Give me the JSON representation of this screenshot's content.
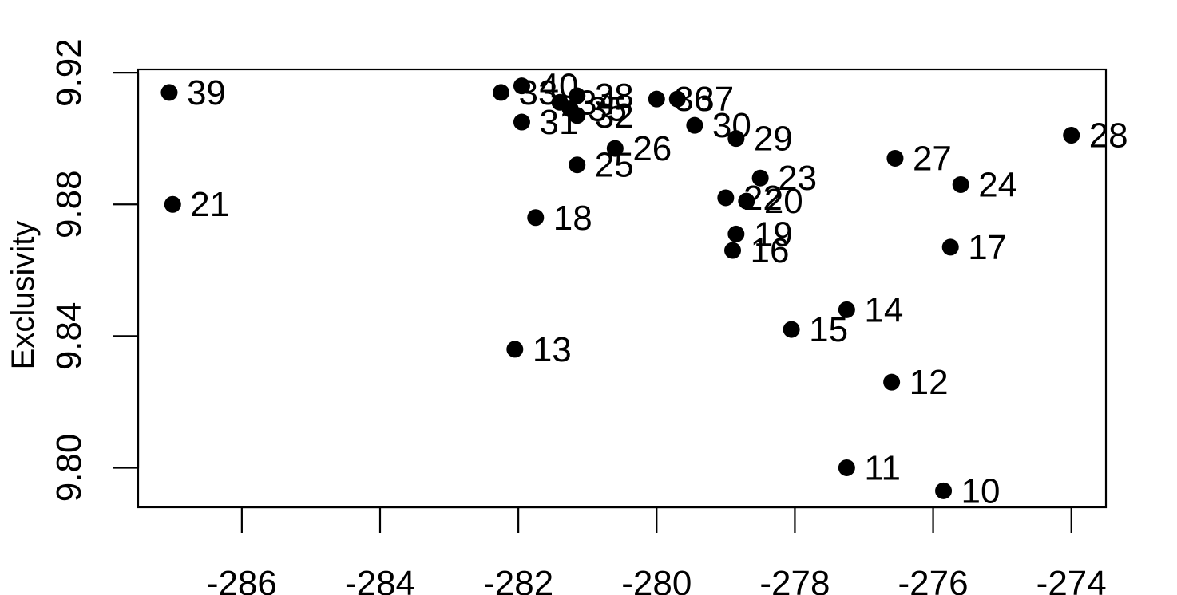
{
  "chart_data": {
    "type": "scatter",
    "title": "",
    "xlabel": "",
    "ylabel": "Exclusivity",
    "xlim": [
      -287.5,
      -273.5
    ],
    "ylim": [
      9.788,
      9.921
    ],
    "grid": false,
    "legend": "none",
    "x_ticks": [
      -286,
      -284,
      -282,
      -280,
      -278,
      -276,
      -274
    ],
    "x_tick_labels": [
      "-286",
      "-284",
      "-282",
      "-280",
      "-278",
      "-276",
      "-274"
    ],
    "y_ticks": [
      9.8,
      9.84,
      9.88,
      9.92
    ],
    "y_tick_labels": [
      "9.80",
      "9.84",
      "9.88",
      "9.92"
    ],
    "point_color": "#000000",
    "points": [
      {
        "label": "10",
        "x": -275.85,
        "y": 9.793
      },
      {
        "label": "11",
        "x": -277.25,
        "y": 9.8
      },
      {
        "label": "12",
        "x": -276.6,
        "y": 9.826
      },
      {
        "label": "13",
        "x": -282.05,
        "y": 9.836
      },
      {
        "label": "14",
        "x": -277.25,
        "y": 9.848
      },
      {
        "label": "15",
        "x": -278.05,
        "y": 9.842
      },
      {
        "label": "16",
        "x": -278.9,
        "y": 9.866
      },
      {
        "label": "17",
        "x": -275.75,
        "y": 9.867
      },
      {
        "label": "18",
        "x": -281.75,
        "y": 9.876
      },
      {
        "label": "19",
        "x": -278.85,
        "y": 9.871
      },
      {
        "label": "20",
        "x": -278.7,
        "y": 9.881
      },
      {
        "label": "21",
        "x": -287.0,
        "y": 9.88
      },
      {
        "label": "22",
        "x": -279.0,
        "y": 9.882
      },
      {
        "label": "23",
        "x": -278.5,
        "y": 9.888
      },
      {
        "label": "24",
        "x": -275.6,
        "y": 9.886
      },
      {
        "label": "25",
        "x": -281.15,
        "y": 9.892
      },
      {
        "label": "26",
        "x": -280.6,
        "y": 9.897
      },
      {
        "label": "27",
        "x": -276.55,
        "y": 9.894
      },
      {
        "label": "28",
        "x": -274.0,
        "y": 9.901
      },
      {
        "label": "29",
        "x": -278.85,
        "y": 9.9
      },
      {
        "label": "30",
        "x": -279.45,
        "y": 9.904
      },
      {
        "label": "31",
        "x": -281.95,
        "y": 9.905
      },
      {
        "label": "32",
        "x": -281.15,
        "y": 9.907
      },
      {
        "label": "33",
        "x": -282.25,
        "y": 9.914
      },
      {
        "label": "34",
        "x": -281.4,
        "y": 9.911
      },
      {
        "label": "35",
        "x": -281.25,
        "y": 9.909
      },
      {
        "label": "36",
        "x": -280.0,
        "y": 9.912
      },
      {
        "label": "37",
        "x": -279.7,
        "y": 9.912
      },
      {
        "label": "38",
        "x": -281.15,
        "y": 9.913
      },
      {
        "label": "39",
        "x": -287.05,
        "y": 9.914
      },
      {
        "label": "40",
        "x": -281.95,
        "y": 9.916
      }
    ]
  }
}
